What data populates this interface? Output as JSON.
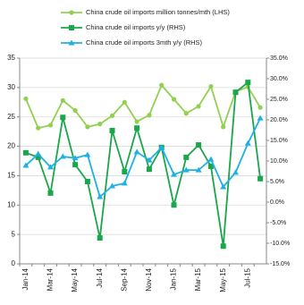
{
  "chart_data": {
    "type": "line",
    "categories": [
      "Jan-14",
      null,
      "Mar-14",
      null,
      "May-14",
      null,
      "Jul-14",
      null,
      "Sep-14",
      null,
      "Nov-14",
      null,
      "Jan-15",
      null,
      "Mar-15",
      null,
      "May-15",
      null,
      "Jul-15",
      null
    ],
    "series": [
      {
        "name": "China crude oil imports million tonnes/mth (LHS)",
        "color": "#92d050",
        "marker": "circle",
        "values": [
          28.1,
          23.1,
          23.6,
          27.8,
          26.1,
          23.3,
          23.8,
          25.2,
          27.5,
          24.2,
          25.3,
          30.4,
          28.0,
          25.6,
          26.8,
          30.2,
          23.3,
          29.3,
          30.1,
          26.6
        ]
      },
      {
        "name": "China crude oil imports y/y (RHS)",
        "color": "#1aa64a",
        "marker": "square",
        "axis": "y2",
        "values": [
          12.0,
          10.9,
          2.2,
          20.6,
          9.1,
          5.0,
          -8.7,
          17.4,
          7.4,
          18.0,
          8.0,
          13.3,
          -0.7,
          10.9,
          13.9,
          8.7,
          -10.7,
          26.7,
          29.1,
          5.7
        ]
      },
      {
        "name": "China crude oil imports 3mth y/y (RHS)",
        "color": "#1fb0e6",
        "marker": "triangle",
        "axis": "y2",
        "values": [
          8.9,
          11.7,
          8.5,
          11.1,
          10.7,
          11.5,
          1.3,
          3.9,
          4.6,
          12.2,
          10.2,
          13.3,
          6.7,
          7.8,
          7.8,
          10.4,
          3.7,
          7.2,
          14.3,
          20.4
        ]
      }
    ],
    "ylim": [
      0,
      35
    ],
    "yticks": [
      0,
      5,
      10,
      15,
      20,
      25,
      30,
      35
    ],
    "y2lim": [
      -15,
      35
    ],
    "y2ticks": [
      {
        "value": -15,
        "label": "-15.0%"
      },
      {
        "value": -10,
        "label": "-10.0%"
      },
      {
        "value": -5,
        "label": "-5.0%"
      },
      {
        "value": 0,
        "label": "0.0%"
      },
      {
        "value": 5,
        "label": "5.0%"
      },
      {
        "value": 10,
        "label": "10.0%"
      },
      {
        "value": 15,
        "label": "15.0%"
      },
      {
        "value": 20,
        "label": "20.0%"
      },
      {
        "value": 25,
        "label": "25.0%"
      },
      {
        "value": 30,
        "label": "30.0%"
      },
      {
        "value": 35,
        "label": "35.0%"
      }
    ],
    "grid": true
  }
}
